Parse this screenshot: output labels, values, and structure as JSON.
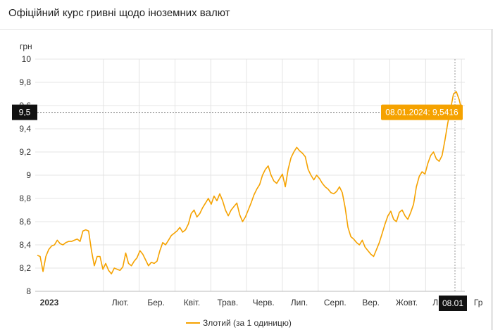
{
  "page": {
    "title": "Офіційний курс гривні щодо іноземних валют"
  },
  "chart_data": {
    "type": "line",
    "title": "Офіційний курс гривні щодо іноземних валют",
    "ylabel": "грн",
    "ylim": [
      8,
      10
    ],
    "yticks": [
      8,
      8.2,
      8.4,
      8.6,
      8.8,
      9,
      9.2,
      9.4,
      9.6,
      9.8,
      10
    ],
    "ytick_labels": [
      "8",
      "8,2",
      "8,4",
      "8,6",
      "8,8",
      "9",
      "9,2",
      "9,4",
      "9,6",
      "9,8",
      "10"
    ],
    "xticks": [
      "2023",
      "Лют.",
      "Бер.",
      "Квіт.",
      "Трав.",
      "Черв.",
      "Лип.",
      "Серп.",
      "Вер.",
      "Жовт.",
      "Лист.",
      "Гр"
    ],
    "grid": true,
    "legend": "bottom",
    "series": [
      {
        "name": "Злотий (за 1 одиницю)",
        "color": "#f5a200",
        "values": [
          8.31,
          8.3,
          8.17,
          8.3,
          8.36,
          8.39,
          8.4,
          8.44,
          8.41,
          8.4,
          8.42,
          8.43,
          8.43,
          8.44,
          8.45,
          8.43,
          8.52,
          8.53,
          8.52,
          8.35,
          8.22,
          8.3,
          8.3,
          8.19,
          8.24,
          8.18,
          8.15,
          8.2,
          8.19,
          8.18,
          8.21,
          8.33,
          8.24,
          8.22,
          8.26,
          8.29,
          8.35,
          8.32,
          8.27,
          8.22,
          8.25,
          8.24,
          8.26,
          8.35,
          8.42,
          8.4,
          8.44,
          8.48,
          8.5,
          8.52,
          8.55,
          8.51,
          8.53,
          8.58,
          8.67,
          8.7,
          8.64,
          8.67,
          8.72,
          8.76,
          8.8,
          8.75,
          8.82,
          8.78,
          8.84,
          8.78,
          8.7,
          8.65,
          8.7,
          8.73,
          8.76,
          8.66,
          8.6,
          8.64,
          8.7,
          8.76,
          8.83,
          8.88,
          8.92,
          9.0,
          9.05,
          9.08,
          9.0,
          8.95,
          8.93,
          8.97,
          9.01,
          8.9,
          9.05,
          9.15,
          9.2,
          9.24,
          9.21,
          9.19,
          9.16,
          9.05,
          9.0,
          8.96,
          9.0,
          8.97,
          8.93,
          8.9,
          8.88,
          8.85,
          8.84,
          8.86,
          8.9,
          8.85,
          8.72,
          8.55,
          8.47,
          8.45,
          8.42,
          8.4,
          8.44,
          8.38,
          8.35,
          8.32,
          8.3,
          8.36,
          8.42,
          8.5,
          8.58,
          8.65,
          8.69,
          8.62,
          8.6,
          8.68,
          8.7,
          8.65,
          8.62,
          8.68,
          8.75,
          8.9,
          8.99,
          9.03,
          9.01,
          9.1,
          9.17,
          9.2,
          9.14,
          9.12,
          9.17,
          9.3,
          9.45,
          9.57,
          9.7,
          9.72,
          9.65,
          9.55
        ]
      }
    ],
    "highlight": {
      "label": "08.01.2024: 9,5416",
      "y_label": "9,5",
      "x_label": "08.01",
      "value": 9.5416
    }
  },
  "colors": {
    "line": "#f5a200",
    "tooltip_bg": "#f5a200",
    "marker_bg": "#111111",
    "grid": "#e4e4e4"
  }
}
